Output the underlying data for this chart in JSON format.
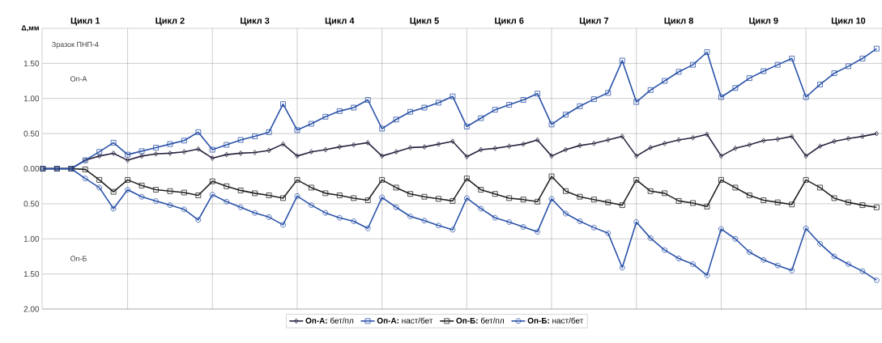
{
  "chart_data": {
    "type": "line",
    "ylabel": "Δ,мм",
    "categories": [
      null,
      null,
      null,
      null,
      null,
      null,
      null,
      null,
      null,
      null,
      null,
      null,
      null,
      null,
      null,
      null,
      null,
      null,
      null,
      null,
      null,
      null,
      null,
      null,
      null,
      null,
      null,
      null,
      null,
      null,
      null,
      null,
      null,
      null,
      null,
      null,
      null,
      null,
      null,
      null,
      null,
      null,
      null,
      null,
      null,
      null,
      null,
      null,
      null,
      null,
      null,
      null,
      null,
      null,
      null,
      null,
      null,
      null,
      null,
      null
    ],
    "series": [
      {
        "name": "**Оп-А:** бет/пл",
        "color": "#2b2440",
        "marker": "diamond",
        "values": [
          0,
          0,
          0,
          0.12,
          0.18,
          0.22,
          0.12,
          0.18,
          0.21,
          0.22,
          0.24,
          0.28,
          0.15,
          0.2,
          0.22,
          0.23,
          0.26,
          0.35,
          0.18,
          0.24,
          0.27,
          0.31,
          0.34,
          0.37,
          0.18,
          0.24,
          0.3,
          0.31,
          0.35,
          0.39,
          0.17,
          0.27,
          0.29,
          0.32,
          0.35,
          0.41,
          0.18,
          0.27,
          0.33,
          0.36,
          0.41,
          0.46,
          0.18,
          0.3,
          0.36,
          0.41,
          0.44,
          0.49,
          0.18,
          0.29,
          0.34,
          0.4,
          0.42,
          0.46,
          0.18,
          0.32,
          0.39,
          0.43,
          0.46,
          0.5
        ]
      },
      {
        "name": "**Оп-А:** наст/бет",
        "color": "#2a52a8",
        "marker": "square",
        "values": [
          0,
          0,
          0,
          0.12,
          0.24,
          0.37,
          0.2,
          0.25,
          0.3,
          0.35,
          0.4,
          0.52,
          0.27,
          0.34,
          0.41,
          0.46,
          0.52,
          0.92,
          0.55,
          0.64,
          0.74,
          0.82,
          0.87,
          0.98,
          0.57,
          0.7,
          0.81,
          0.87,
          0.94,
          1.03,
          0.6,
          0.72,
          0.84,
          0.91,
          0.98,
          1.07,
          0.63,
          0.77,
          0.89,
          0.99,
          1.08,
          1.54,
          0.95,
          1.12,
          1.25,
          1.38,
          1.48,
          1.66,
          1.02,
          1.15,
          1.29,
          1.39,
          1.48,
          1.57,
          1.02,
          1.2,
          1.36,
          1.46,
          1.57,
          1.71
        ]
      },
      {
        "name": "**Оп-Б:** бет/пл",
        "color": "#222222",
        "marker": "square",
        "values": [
          0,
          0,
          0,
          -0.01,
          -0.16,
          -0.33,
          -0.16,
          -0.24,
          -0.3,
          -0.32,
          -0.34,
          -0.38,
          -0.18,
          -0.25,
          -0.31,
          -0.35,
          -0.38,
          -0.42,
          -0.16,
          -0.27,
          -0.35,
          -0.38,
          -0.42,
          -0.45,
          -0.16,
          -0.27,
          -0.36,
          -0.4,
          -0.43,
          -0.46,
          -0.14,
          -0.3,
          -0.36,
          -0.42,
          -0.44,
          -0.47,
          -0.11,
          -0.32,
          -0.4,
          -0.44,
          -0.48,
          -0.52,
          -0.16,
          -0.32,
          -0.35,
          -0.46,
          -0.49,
          -0.54,
          -0.16,
          -0.27,
          -0.38,
          -0.45,
          -0.48,
          -0.51,
          -0.16,
          -0.27,
          -0.42,
          -0.48,
          -0.52,
          -0.55
        ]
      },
      {
        "name": "**Оп-Б:** наст/бет",
        "color": "#2a52a8",
        "marker": "circle",
        "values": [
          0,
          0,
          0,
          -0.14,
          -0.27,
          -0.57,
          -0.3,
          -0.4,
          -0.46,
          -0.52,
          -0.58,
          -0.73,
          -0.37,
          -0.47,
          -0.55,
          -0.63,
          -0.69,
          -0.8,
          -0.39,
          -0.52,
          -0.63,
          -0.7,
          -0.75,
          -0.85,
          -0.41,
          -0.55,
          -0.68,
          -0.74,
          -0.81,
          -0.87,
          -0.42,
          -0.57,
          -0.7,
          -0.76,
          -0.83,
          -0.9,
          -0.43,
          -0.64,
          -0.75,
          -0.84,
          -0.92,
          -1.41,
          -0.76,
          -0.99,
          -1.16,
          -1.28,
          -1.36,
          -1.52,
          -0.86,
          -1.0,
          -1.19,
          -1.3,
          -1.38,
          -1.45,
          -0.85,
          -1.07,
          -1.25,
          -1.36,
          -1.46,
          -1.59
        ]
      }
    ],
    "ylim": [
      -2,
      2
    ],
    "yticks": [
      {
        "value": -2,
        "label": "2.00"
      },
      {
        "value": -1.5,
        "label": "1.50"
      },
      {
        "value": -1,
        "label": "1.00"
      },
      {
        "value": -0.5,
        "label": "0.50"
      },
      {
        "value": 0,
        "label": "0.00"
      },
      {
        "value": 0.5,
        "label": "0.50"
      },
      {
        "value": 1,
        "label": "1.00"
      },
      {
        "value": 1.5,
        "label": "1.50"
      }
    ],
    "annotations": [
      "Зразок ПНП-4",
      "Оп-А",
      "Оп-Б",
      "Цикл 1",
      "Цикл 2",
      "Цикл 3",
      "Цикл 4",
      "Цикл 5",
      "Цикл 6",
      "Цикл 7",
      "Цикл 8",
      "Цикл 9",
      "Цикл 10"
    ],
    "grid": true,
    "legend": "bottom",
    "line_style": "solid"
  }
}
